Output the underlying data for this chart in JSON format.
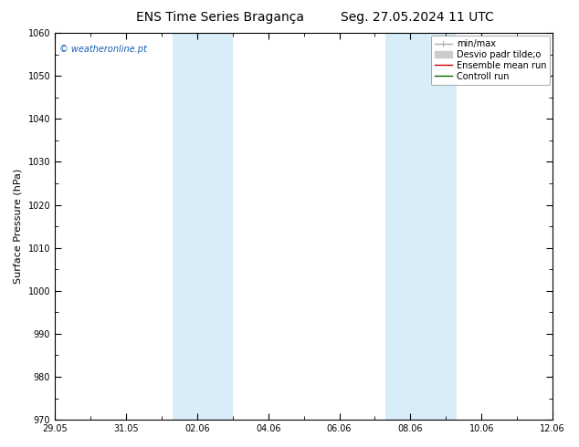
{
  "title_left": "ENS Time Series Bragança",
  "title_right": "Seg. 27.05.2024 11 UTC",
  "ylabel": "Surface Pressure (hPa)",
  "ylim": [
    970,
    1060
  ],
  "yticks": [
    970,
    980,
    990,
    1000,
    1010,
    1020,
    1030,
    1040,
    1050,
    1060
  ],
  "x_tick_labels": [
    "29.05",
    "31.05",
    "02.06",
    "04.06",
    "06.06",
    "08.06",
    "10.06",
    "12.06"
  ],
  "x_tick_positions": [
    0,
    2,
    4,
    6,
    8,
    10,
    12,
    14
  ],
  "xlim": [
    0,
    14
  ],
  "shaded_bands": [
    {
      "xstart": 3.3,
      "xend": 5.0
    },
    {
      "xstart": 9.3,
      "xend": 11.3
    }
  ],
  "shaded_color": "#d8edf8",
  "watermark": "© weatheronline.pt",
  "watermark_color": "#1a5fb4",
  "background_color": "#ffffff",
  "plot_bg_color": "#ffffff",
  "border_color": "#000000",
  "legend_entries": [
    {
      "label": "min/max",
      "color": "#aaaaaa",
      "lw": 1.0
    },
    {
      "label": "Desvio padr tilde;o",
      "color": "#cccccc",
      "lw": 5
    },
    {
      "label": "Ensemble mean run",
      "color": "#cc0000",
      "lw": 1.0
    },
    {
      "label": "Controll run",
      "color": "#006600",
      "lw": 1.0
    }
  ],
  "title_fontsize": 10,
  "tick_fontsize": 7,
  "label_fontsize": 8,
  "watermark_fontsize": 7,
  "legend_fontsize": 7
}
